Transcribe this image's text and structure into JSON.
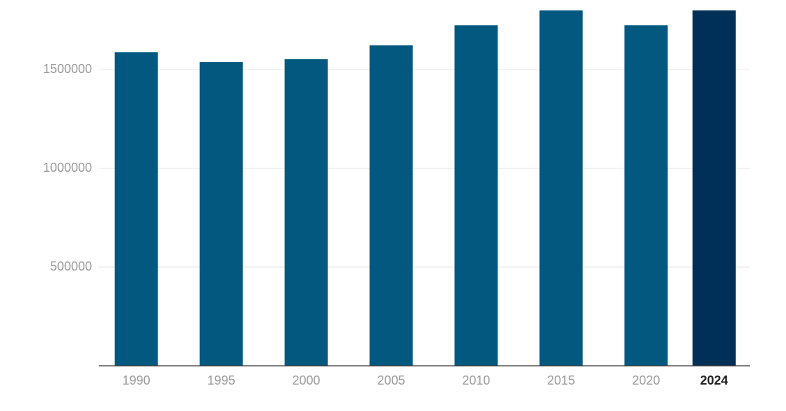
{
  "chart_data": {
    "type": "bar",
    "x": [
      1990,
      1995,
      2000,
      2005,
      2010,
      2015,
      2020,
      2024
    ],
    "values": [
      1588000,
      1539000,
      1553000,
      1623000,
      1725000,
      1800000,
      1725000,
      1800000
    ],
    "colors": [
      "#03587f",
      "#03587f",
      "#03587f",
      "#03587f",
      "#03587f",
      "#03587f",
      "#03587f",
      "#003057"
    ],
    "xlim": [
      1987.8,
      2026.1
    ],
    "ylim": [
      0,
      1800000
    ],
    "yticks": [
      500000,
      1000000,
      1500000
    ],
    "grid": true
  }
}
